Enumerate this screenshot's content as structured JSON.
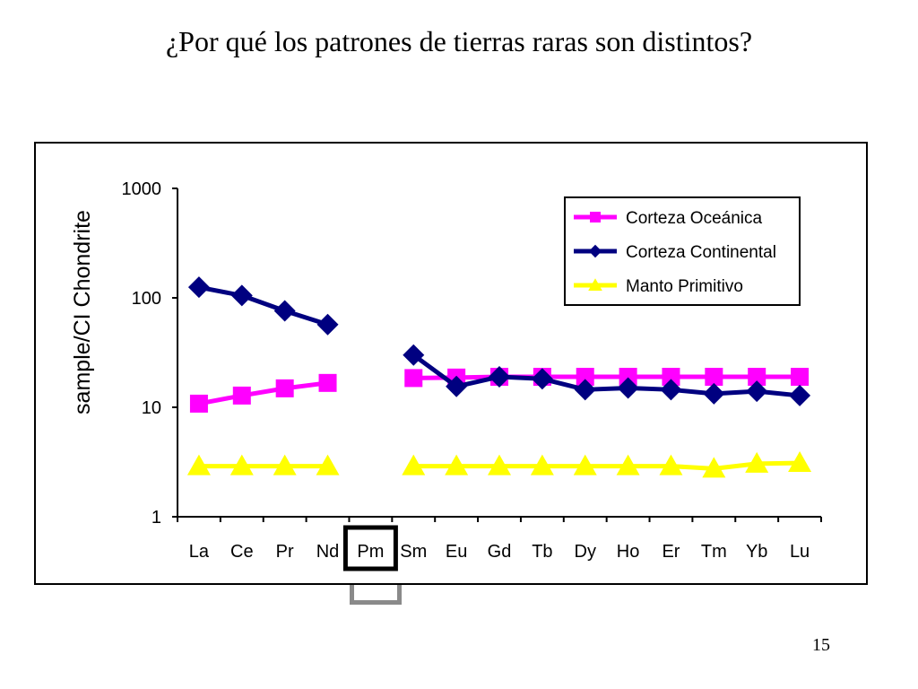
{
  "slide": {
    "title": "¿Por qué los patrones de tierras raras son distintos?",
    "page_number": "15"
  },
  "chart_data": {
    "type": "line",
    "ylabel": "sample/CI Chondrite",
    "xlabel": "",
    "yscale": "log",
    "ylim": [
      1,
      1000
    ],
    "yticks": [
      1,
      10,
      100,
      1000
    ],
    "ytick_labels": [
      "1",
      "10",
      "100",
      "1000"
    ],
    "categories": [
      "La",
      "Ce",
      "Pr",
      "Nd",
      "Pm",
      "Sm",
      "Eu",
      "Gd",
      "Tb",
      "Dy",
      "Ho",
      "Er",
      "Tm",
      "Yb",
      "Lu"
    ],
    "highlighted_category": "Pm",
    "grid": false,
    "legend_position": "top-right",
    "series": [
      {
        "name": "Corteza Oceánica",
        "color": "#ff00ff",
        "marker": "square",
        "values": [
          10.8,
          12.8,
          14.9,
          16.7,
          null,
          18.5,
          18.7,
          19,
          19,
          19,
          19,
          19,
          19,
          19,
          19
        ]
      },
      {
        "name": "Corteza Continental",
        "color": "#000080",
        "marker": "diamond",
        "values": [
          125,
          105,
          76,
          57,
          null,
          30,
          15.5,
          19,
          18.2,
          14.5,
          15,
          14.5,
          13.3,
          14,
          12.8
        ]
      },
      {
        "name": "Manto Primitivo",
        "color": "#ffff00",
        "marker": "triangle",
        "values": [
          2.9,
          2.9,
          2.9,
          2.9,
          null,
          2.9,
          2.9,
          2.9,
          2.9,
          2.9,
          2.9,
          2.9,
          2.75,
          3.05,
          3.1
        ]
      }
    ]
  }
}
